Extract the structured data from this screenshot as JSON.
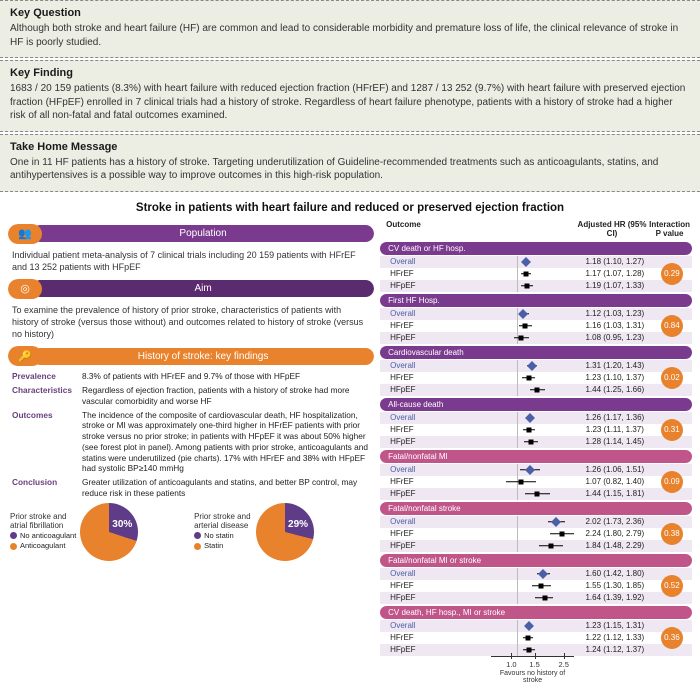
{
  "sections": {
    "keyQuestion": {
      "title": "Key Question",
      "body": "Although both stroke and heart failure (HF) are common and lead to considerable morbidity and premature loss of life, the clinical relevance of stroke in HF is poorly studied."
    },
    "keyFinding": {
      "title": "Key Finding",
      "body": "1683 / 20 159 patients (8.3%) with heart failure with reduced ejection fraction (HFrEF) and 1287 / 13 252 (9.7%) with heart failure with preserved ejection fraction (HFpEF) enrolled in 7 clinical trials had a history of stroke. Regardless of heart failure phenotype, patients with a history of stroke had a higher risk of all non-fatal and fatal outcomes examined."
    },
    "takeHome": {
      "title": "Take Home Message",
      "body": "One in 11 HF patients has a history of stroke. Targeting underutilization of Guideline-recommended treatments such as anticoagulants, statins, and antihypertensives is a possible way to improve outcomes in this high-risk population."
    }
  },
  "mainTitle": "Stroke in patients with heart failure and reduced or preserved ejection fraction",
  "left": {
    "population": {
      "pill": "Population",
      "icon": "👥",
      "text": "Individual patient meta-analysis of 7 clinical trials including 20 159 patients with HFrEF and 13 252 patients with HFpEF"
    },
    "aim": {
      "pill": "Aim",
      "icon": "◎",
      "text": "To examine the prevalence of history of prior stroke, characteristics of patients with history of stroke (versus those without) and outcomes related to history of stroke (versus no history)"
    },
    "keyFindings": {
      "pill": "History of stroke: key findings",
      "icon": "🔑",
      "rows": [
        {
          "k": "Prevalence",
          "v": "8.3% of patients with HFrEF and 9.7% of those with HFpEF"
        },
        {
          "k": "Characteristics",
          "v": "Regardless of ejection fraction, patients with a history of stroke had more vascular comorbidity and worse HF"
        },
        {
          "k": "Outcomes",
          "v": "The incidence of the composite of cardiovascular death, HF hospitalization, stroke or MI was approximately one-third higher in HFrEF patients with prior stroke versus no prior stroke; in patients with HFpEF it was about 50% higher (see forest plot in panel). Among patients with prior stroke, anticoagulants and statins were underutilized (pie charts). 17% with HFrEF and 38% with HFpEF had systolic BP≥140 mmHg"
        },
        {
          "k": "Conclusion",
          "v": "Greater utilization of anticoagulants and statins, and better BP control, may reduce risk in these patients"
        }
      ]
    }
  },
  "pies": [
    {
      "caption": "Prior stroke and atrial fibrillation",
      "pct": 30,
      "pctLabel": "30%",
      "leg1": "No anticoagulant",
      "leg2": "Anticoagulant"
    },
    {
      "caption": "Prior stroke and arterial disease",
      "pct": 29,
      "pctLabel": "29%",
      "leg1": "No statin",
      "leg2": "Statin"
    }
  ],
  "pieColors": {
    "main": "#e9822d",
    "accent": "#5f3c87"
  },
  "forest": {
    "headers": {
      "outcome": "Outcome",
      "hr": "Adjusted HR (95% CI)",
      "pval": "Interaction P value"
    },
    "xAxis": {
      "min": 0.7,
      "max": 3.0,
      "ref": 1.0,
      "ticks": [
        1.0,
        1.5,
        2.5
      ],
      "tickLabels": [
        "1.0",
        "1.5",
        "2.5"
      ],
      "caption": "Favours no history of stroke"
    },
    "catColors": {
      "a": "#7a3a8e",
      "b": "#c0558a"
    },
    "groups": [
      {
        "title": "CV death or HF hosp.",
        "color": "a",
        "p": "0.29",
        "rows": [
          {
            "lab": "Overall",
            "hr": 1.18,
            "lo": 1.1,
            "hi": 1.27,
            "txt": "1.18 (1.10, 1.27)",
            "ov": true
          },
          {
            "lab": "HFrEF",
            "hr": 1.17,
            "lo": 1.07,
            "hi": 1.28,
            "txt": "1.17 (1.07, 1.28)"
          },
          {
            "lab": "HFpEF",
            "hr": 1.19,
            "lo": 1.07,
            "hi": 1.33,
            "txt": "1.19 (1.07, 1.33)"
          }
        ]
      },
      {
        "title": "First HF Hosp.",
        "color": "a",
        "p": "0.84",
        "rows": [
          {
            "lab": "Overall",
            "hr": 1.12,
            "lo": 1.03,
            "hi": 1.23,
            "txt": "1.12 (1.03, 1.23)",
            "ov": true
          },
          {
            "lab": "HFrEF",
            "hr": 1.16,
            "lo": 1.03,
            "hi": 1.31,
            "txt": "1.16 (1.03, 1.31)"
          },
          {
            "lab": "HFpEF",
            "hr": 1.08,
            "lo": 0.95,
            "hi": 1.23,
            "txt": "1.08 (0.95, 1.23)"
          }
        ]
      },
      {
        "title": "Cardiovascular death",
        "color": "a",
        "p": "0.02",
        "rows": [
          {
            "lab": "Overall",
            "hr": 1.31,
            "lo": 1.2,
            "hi": 1.43,
            "txt": "1.31 (1.20, 1.43)",
            "ov": true
          },
          {
            "lab": "HFrEF",
            "hr": 1.23,
            "lo": 1.1,
            "hi": 1.37,
            "txt": "1.23 (1.10, 1.37)"
          },
          {
            "lab": "HFpEF",
            "hr": 1.44,
            "lo": 1.25,
            "hi": 1.66,
            "txt": "1.44 (1.25, 1.66)"
          }
        ]
      },
      {
        "title": "All-cause death",
        "color": "a",
        "p": "0.31",
        "rows": [
          {
            "lab": "Overall",
            "hr": 1.26,
            "lo": 1.17,
            "hi": 1.36,
            "txt": "1.26 (1.17, 1.36)",
            "ov": true
          },
          {
            "lab": "HFrEF",
            "hr": 1.23,
            "lo": 1.11,
            "hi": 1.37,
            "txt": "1.23 (1.11, 1.37)"
          },
          {
            "lab": "HFpEF",
            "hr": 1.28,
            "lo": 1.14,
            "hi": 1.45,
            "txt": "1.28 (1.14, 1.45)"
          }
        ]
      },
      {
        "title": "Fatal/nonfatal MI",
        "color": "b",
        "p": "0.09",
        "rows": [
          {
            "lab": "Overall",
            "hr": 1.26,
            "lo": 1.06,
            "hi": 1.51,
            "txt": "1.26 (1.06, 1.51)",
            "ov": true
          },
          {
            "lab": "HFrEF",
            "hr": 1.07,
            "lo": 0.82,
            "hi": 1.4,
            "txt": "1.07 (0.82, 1.40)"
          },
          {
            "lab": "HFpEF",
            "hr": 1.44,
            "lo": 1.15,
            "hi": 1.81,
            "txt": "1.44 (1.15, 1.81)"
          }
        ]
      },
      {
        "title": "Fatal/nonfatal stroke",
        "color": "b",
        "p": "0.38",
        "rows": [
          {
            "lab": "Overall",
            "hr": 2.02,
            "lo": 1.73,
            "hi": 2.36,
            "txt": "2.02 (1.73, 2.36)",
            "ov": true
          },
          {
            "lab": "HFrEF",
            "hr": 2.24,
            "lo": 1.8,
            "hi": 2.79,
            "txt": "2.24 (1.80, 2.79)"
          },
          {
            "lab": "HFpEF",
            "hr": 1.84,
            "lo": 1.48,
            "hi": 2.29,
            "txt": "1.84 (1.48, 2.29)"
          }
        ]
      },
      {
        "title": "Fatal/nonfatal MI or stroke",
        "color": "b",
        "p": "0.52",
        "rows": [
          {
            "lab": "Overall",
            "hr": 1.6,
            "lo": 1.42,
            "hi": 1.8,
            "txt": "1.60 (1.42, 1.80)",
            "ov": true
          },
          {
            "lab": "HFrEF",
            "hr": 1.55,
            "lo": 1.3,
            "hi": 1.85,
            "txt": "1.55 (1.30, 1.85)"
          },
          {
            "lab": "HFpEF",
            "hr": 1.64,
            "lo": 1.39,
            "hi": 1.92,
            "txt": "1.64 (1.39, 1.92)"
          }
        ]
      },
      {
        "title": "CV death, HF hosp., MI or stroke",
        "color": "b",
        "p": "0.36",
        "rows": [
          {
            "lab": "Overall",
            "hr": 1.23,
            "lo": 1.15,
            "hi": 1.31,
            "txt": "1.23 (1.15, 1.31)",
            "ov": true
          },
          {
            "lab": "HFrEF",
            "hr": 1.22,
            "lo": 1.12,
            "hi": 1.33,
            "txt": "1.22 (1.12, 1.33)"
          },
          {
            "lab": "HFpEF",
            "hr": 1.24,
            "lo": 1.12,
            "hi": 1.37,
            "txt": "1.24 (1.12, 1.37)"
          }
        ]
      }
    ]
  }
}
